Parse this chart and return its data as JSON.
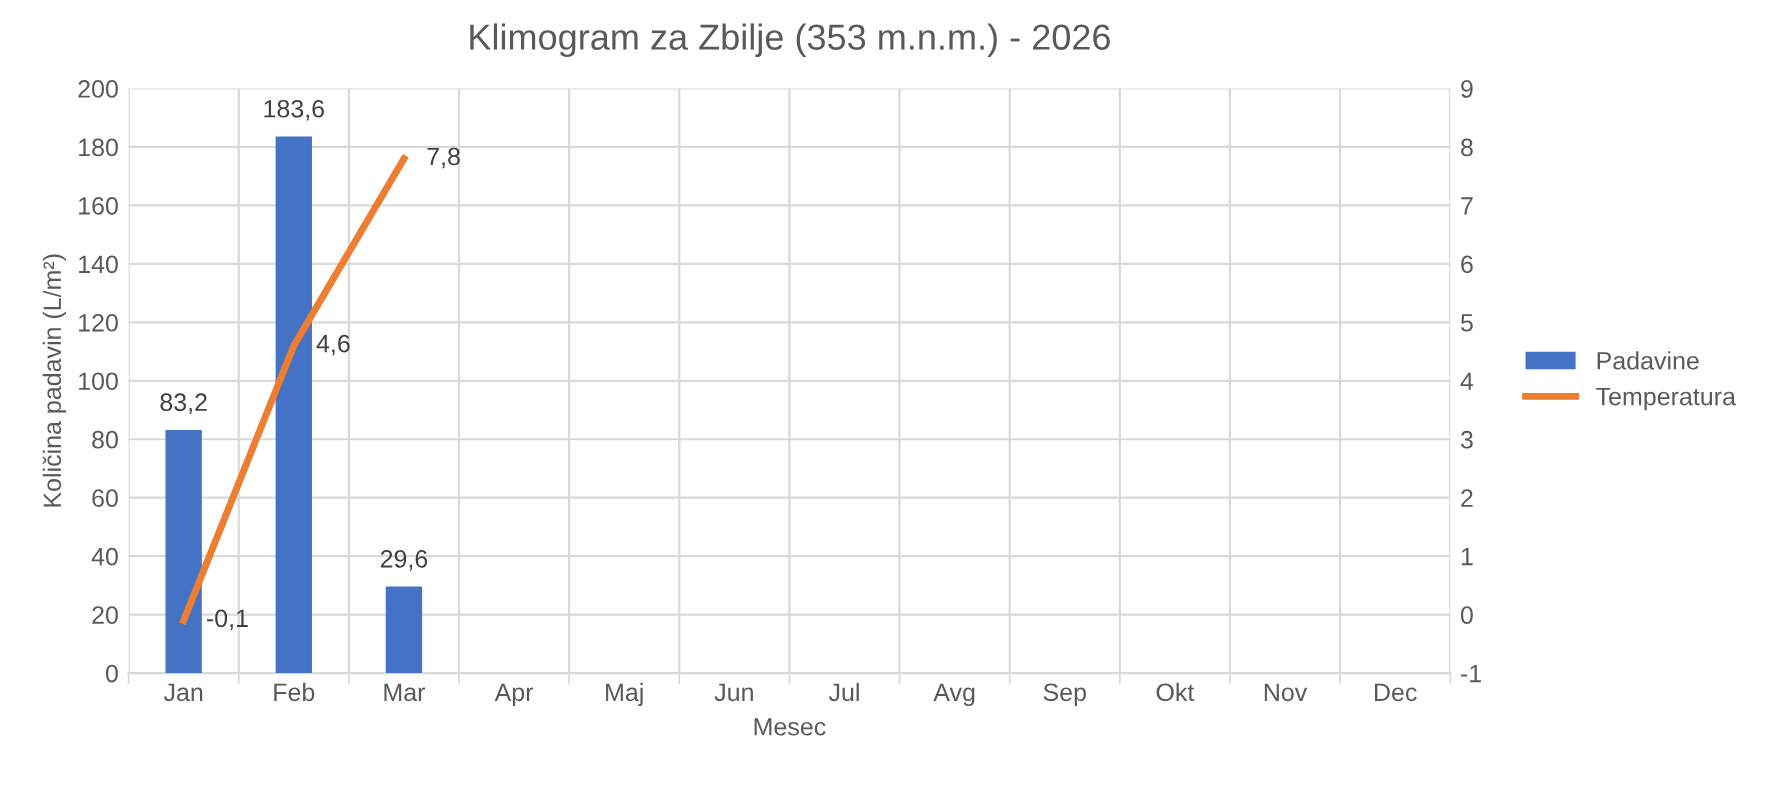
{
  "chart_data": {
    "type": "bar",
    "title": "Klimogram za Zbilje (353 m.n.m.) - 2026",
    "xlabel": "Mesec",
    "ylabel": "Količina padavin (L/m²)",
    "categories": [
      "Jan",
      "Feb",
      "Mar",
      "Apr",
      "Maj",
      "Jun",
      "Jul",
      "Avg",
      "Sep",
      "Okt",
      "Nov",
      "Dec"
    ],
    "series": [
      {
        "name": "Padavine",
        "color": "#4472c4",
        "values": [
          83.2,
          183.6,
          29.6,
          null,
          null,
          null,
          null,
          null,
          null,
          null,
          null,
          null
        ],
        "value_labels": [
          "83,2",
          "183,6",
          "29,6",
          null,
          null,
          null,
          null,
          null,
          null,
          null,
          null,
          null
        ]
      },
      {
        "name": "Temperatura",
        "type": "line",
        "axis": "y2",
        "color": "#ed7d31",
        "values": [
          -0.1,
          4.6,
          7.8,
          null,
          null,
          null,
          null,
          null,
          null,
          null,
          null,
          null
        ],
        "value_labels": [
          "-0,1",
          "4,6",
          "7,8",
          null,
          null,
          null,
          null,
          null,
          null,
          null,
          null,
          null
        ]
      }
    ],
    "ylim": [
      0,
      200
    ],
    "yticks": [
      0,
      20,
      40,
      60,
      80,
      100,
      120,
      140,
      160,
      180,
      200
    ],
    "y2lim": [
      -1,
      9
    ],
    "y2ticks": [
      -1,
      0,
      1,
      2,
      3,
      4,
      5,
      6,
      7,
      8,
      9
    ],
    "grid": true,
    "legend": "right",
    "marker": "none",
    "line_style": "solid"
  }
}
